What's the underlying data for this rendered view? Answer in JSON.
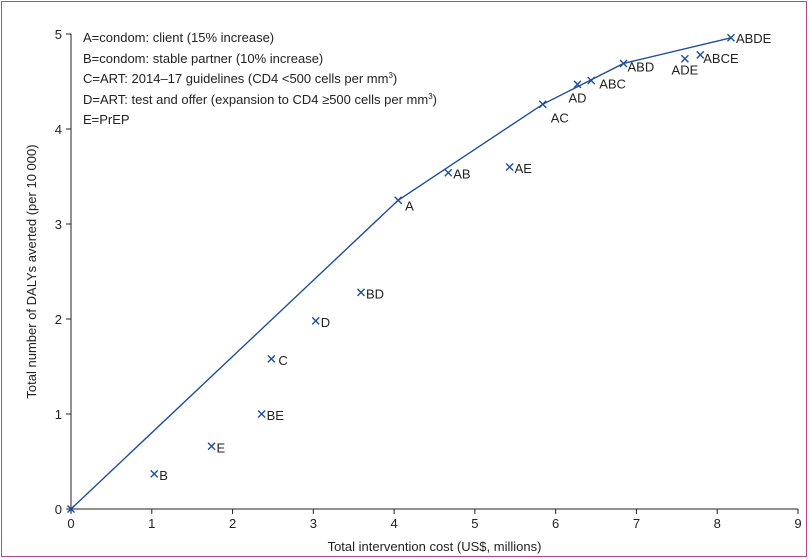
{
  "chart_data": {
    "type": "scatter",
    "xlabel": "Total intervention cost  (US$, millions)",
    "ylabel": "Total number of DALYs averted (per 10 000)",
    "xlim": [
      0,
      9
    ],
    "ylim": [
      0,
      5
    ],
    "xticks": [
      "0",
      "1",
      "2",
      "3",
      "4",
      "5",
      "6",
      "7",
      "8",
      "9"
    ],
    "yticks": [
      "0",
      "1",
      "2",
      "3",
      "4",
      "5"
    ],
    "grid": false,
    "marker_color": "#1f4e9c",
    "line_color": "#1f4e9c",
    "legend": [
      {
        "text": "A=condom: client (15% increase)"
      },
      {
        "text": "B=condom: stable partner (10% increase)"
      },
      {
        "text": "C=ART: 2014–17 guidelines (CD4 <500 cells per mm",
        "sup": "3",
        "tail": ")"
      },
      {
        "text": "D=ART: test and offer (expansion to CD4 ≥500 cells per mm",
        "sup": "3",
        "tail": ")"
      },
      {
        "text": "E=PrEP"
      }
    ],
    "points": [
      {
        "label": "B",
        "x": 1.03,
        "y": 0.37
      },
      {
        "label": "E",
        "x": 1.74,
        "y": 0.66
      },
      {
        "label": "BE",
        "x": 2.36,
        "y": 1.0
      },
      {
        "label": "C",
        "x": 2.48,
        "y": 1.58
      },
      {
        "label": "D",
        "x": 3.03,
        "y": 1.98
      },
      {
        "label": "BD",
        "x": 3.59,
        "y": 2.28
      },
      {
        "label": "A",
        "x": 4.05,
        "y": 3.25
      },
      {
        "label": "AB",
        "x": 4.67,
        "y": 3.54
      },
      {
        "label": "AE",
        "x": 5.43,
        "y": 3.6
      },
      {
        "label": "AC",
        "x": 5.84,
        "y": 4.26
      },
      {
        "label": "AD",
        "x": 6.27,
        "y": 4.47
      },
      {
        "label": "ABC",
        "x": 6.44,
        "y": 4.51
      },
      {
        "label": "ABD",
        "x": 6.84,
        "y": 4.69
      },
      {
        "label": "ADE",
        "x": 7.6,
        "y": 4.74
      },
      {
        "label": "ABCE",
        "x": 7.79,
        "y": 4.78
      },
      {
        "label": "ABDE",
        "x": 8.17,
        "y": 4.96
      }
    ],
    "frontier": [
      {
        "x": 0,
        "y": 0
      },
      {
        "x": 4.05,
        "y": 3.25
      },
      {
        "x": 5.84,
        "y": 4.26
      },
      {
        "x": 6.84,
        "y": 4.69
      },
      {
        "x": 8.17,
        "y": 4.96
      }
    ]
  }
}
